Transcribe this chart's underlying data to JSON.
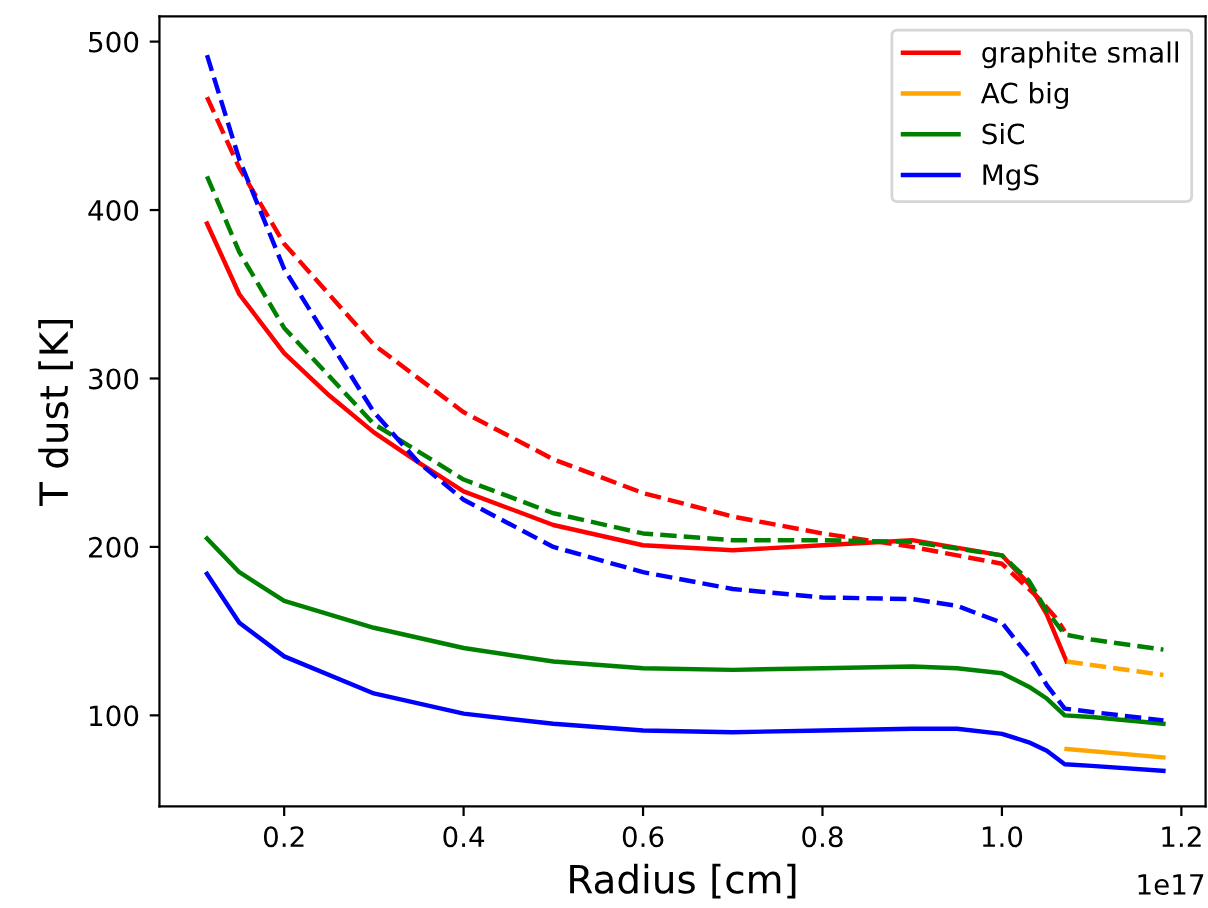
{
  "chart_data": {
    "type": "line",
    "xlabel": "Radius [cm]",
    "ylabel": "T dust [K]",
    "annotations": [
      "1e17"
    ],
    "xlim": [
      0.061,
      1.227
    ],
    "ylim": [
      46,
      515
    ],
    "xticks": [
      0.2,
      0.4,
      0.6,
      0.8,
      {
        "value": 1,
        "label": "1.0"
      },
      1.2
    ],
    "yticks": [
      100,
      200,
      300,
      400,
      500
    ],
    "grid": false,
    "legend": "top right",
    "series": [
      {
        "name": "graphite small",
        "color": "#ff0000",
        "line_style": "solid",
        "x": [
          0.114,
          0.15,
          0.2,
          0.25,
          0.3,
          0.35,
          0.4,
          0.5,
          0.6,
          0.7,
          0.8,
          0.9,
          1.0,
          1.03,
          1.05,
          1.072
        ],
        "values": [
          392,
          350,
          315,
          290,
          268,
          250,
          233,
          213,
          201,
          198,
          201,
          204,
          195,
          178,
          160,
          132
        ]
      },
      {
        "name": "AC big",
        "color": "#ffa500",
        "line_style": "solid",
        "x": [
          1.072,
          1.18
        ],
        "values": [
          80,
          75
        ]
      },
      {
        "name": "SiC",
        "color": "#008000",
        "line_style": "solid",
        "x": [
          0.114,
          0.15,
          0.2,
          0.3,
          0.4,
          0.5,
          0.6,
          0.7,
          0.8,
          0.9,
          0.95,
          1.0,
          1.03,
          1.05,
          1.07,
          1.1,
          1.18
        ],
        "values": [
          205,
          185,
          168,
          152,
          140,
          132,
          128,
          127,
          128,
          129,
          128,
          125,
          117,
          110,
          100,
          99,
          95
        ]
      },
      {
        "name": "MgS",
        "color": "#0000ff",
        "line_style": "solid",
        "x": [
          0.114,
          0.15,
          0.2,
          0.3,
          0.4,
          0.5,
          0.6,
          0.7,
          0.8,
          0.9,
          0.95,
          1.0,
          1.03,
          1.05,
          1.07,
          1.1,
          1.18
        ],
        "values": [
          184,
          155,
          135,
          113,
          101,
          95,
          91,
          90,
          91,
          92,
          92,
          89,
          84,
          79,
          71,
          70,
          67
        ]
      },
      {
        "color": "#ff0000",
        "line_style": "dashed",
        "x": [
          0.114,
          0.15,
          0.2,
          0.3,
          0.4,
          0.5,
          0.6,
          0.7,
          0.8,
          0.9,
          1.0,
          1.04,
          1.06,
          1.07
        ],
        "values": [
          467,
          425,
          380,
          320,
          280,
          252,
          232,
          218,
          208,
          200,
          190,
          170,
          158,
          150
        ]
      },
      {
        "color": "#ffa500",
        "line_style": "dashed",
        "x": [
          1.072,
          1.18
        ],
        "values": [
          132,
          124
        ]
      },
      {
        "color": "#008000",
        "line_style": "dashed",
        "x": [
          0.114,
          0.15,
          0.2,
          0.3,
          0.4,
          0.5,
          0.6,
          0.7,
          0.8,
          0.9,
          1.0,
          1.03,
          1.05,
          1.07,
          1.1,
          1.18
        ],
        "values": [
          420,
          375,
          330,
          273,
          240,
          220,
          208,
          204,
          204,
          203,
          195,
          180,
          162,
          148,
          145,
          139
        ]
      },
      {
        "color": "#0000ff",
        "line_style": "dashed",
        "x": [
          0.114,
          0.15,
          0.2,
          0.3,
          0.35,
          0.4,
          0.5,
          0.6,
          0.7,
          0.8,
          0.9,
          0.95,
          1.0,
          1.03,
          1.05,
          1.07,
          1.1,
          1.18
        ],
        "values": [
          492,
          430,
          365,
          280,
          250,
          228,
          200,
          185,
          175,
          170,
          169,
          165,
          155,
          135,
          118,
          104,
          102,
          97
        ]
      }
    ]
  }
}
